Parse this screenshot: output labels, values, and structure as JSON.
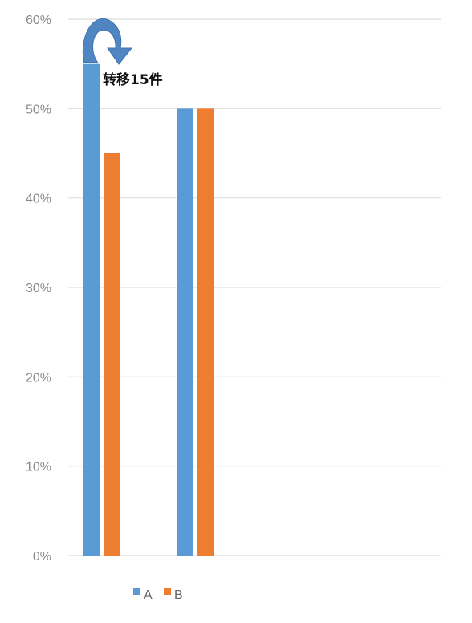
{
  "chart_data": {
    "type": "bar",
    "categories": [
      "",
      ""
    ],
    "series": [
      {
        "name": "A",
        "values": [
          55,
          50
        ],
        "color": "#5b9bd5"
      },
      {
        "name": "B",
        "values": [
          45,
          50
        ],
        "color": "#ed7d31"
      }
    ],
    "ylim": [
      0,
      60
    ],
    "y_ticks": [
      "0%",
      "10%",
      "20%",
      "30%",
      "40%",
      "50%",
      "60%"
    ],
    "grid": true,
    "legend_position": "bottom-left",
    "annotation": {
      "text": "转移15件",
      "arrow": "curved arrow from series A to series B in first category"
    }
  }
}
